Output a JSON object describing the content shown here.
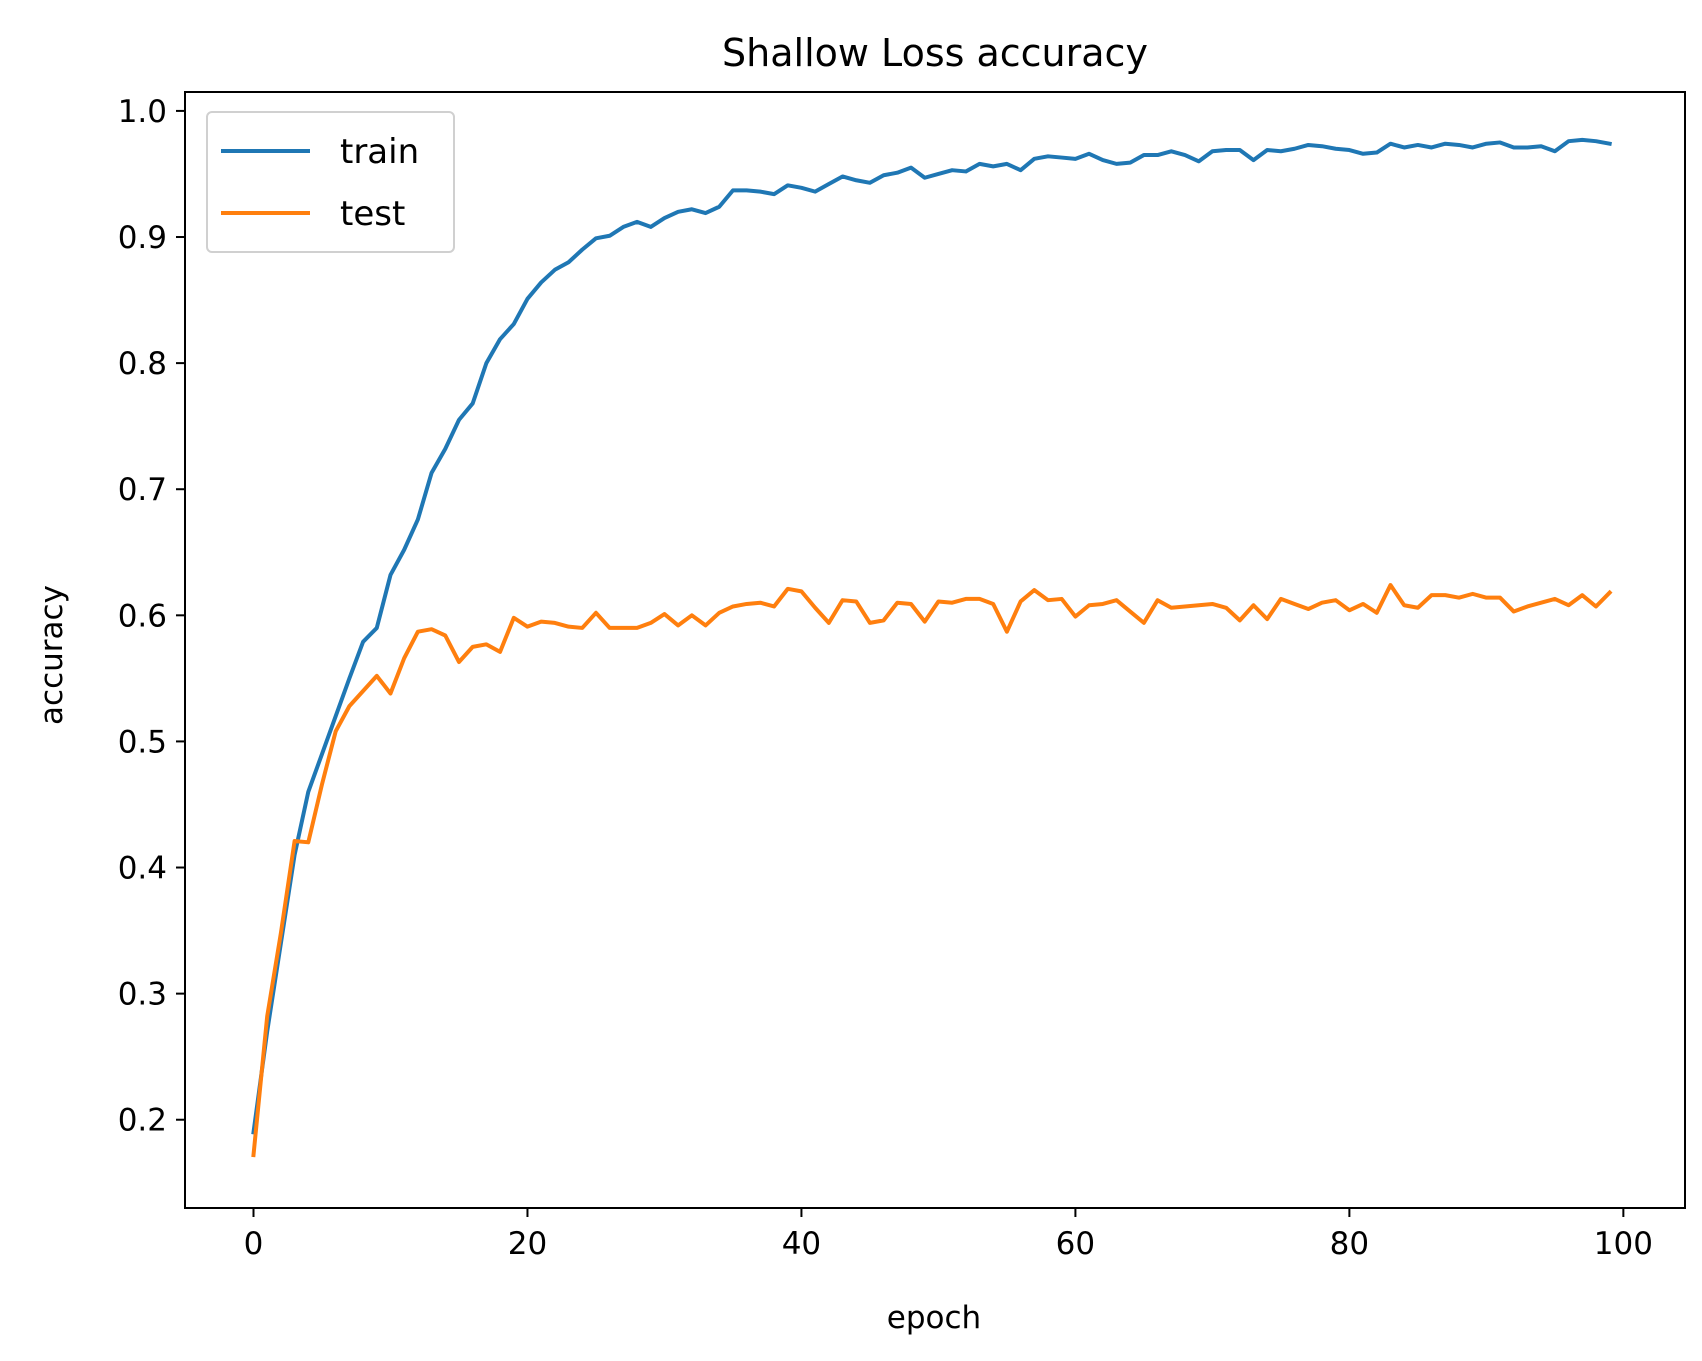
{
  "chart_data": {
    "type": "line",
    "title": "Shallow Loss accuracy",
    "xlabel": "epoch",
    "ylabel": "accuracy",
    "xlim": [
      -5,
      104.5
    ],
    "ylim": [
      0.13,
      1.015
    ],
    "x_ticks": [
      0,
      20,
      40,
      60,
      80,
      100
    ],
    "y_ticks": [
      0.2,
      0.3,
      0.4,
      0.5,
      0.6,
      0.7,
      0.8,
      0.9,
      1.0
    ],
    "x_tick_labels": [
      "0",
      "20",
      "40",
      "60",
      "80",
      "100"
    ],
    "y_tick_labels": [
      "0.2",
      "0.3",
      "0.4",
      "0.5",
      "0.6",
      "0.7",
      "0.8",
      "0.9",
      "1.0"
    ],
    "grid": false,
    "legend_position": "upper-left",
    "series": [
      {
        "name": "train",
        "color": "#1f77b4",
        "values": [
          0.19,
          0.27,
          0.34,
          0.41,
          0.46,
          0.49,
          0.52,
          0.55,
          0.579,
          0.59,
          0.632,
          0.652,
          0.676,
          0.713,
          0.732,
          0.755,
          0.768,
          0.8,
          0.819,
          0.831,
          0.851,
          0.864,
          0.874,
          0.88,
          0.89,
          0.899,
          0.901,
          0.908,
          0.912,
          0.908,
          0.915,
          0.92,
          0.922,
          0.919,
          0.924,
          0.937,
          0.937,
          0.936,
          0.934,
          0.941,
          0.939,
          0.936,
          0.942,
          0.948,
          0.945,
          0.943,
          0.949,
          0.951,
          0.955,
          0.947,
          0.95,
          0.953,
          0.952,
          0.958,
          0.956,
          0.958,
          0.953,
          0.962,
          0.964,
          0.963,
          0.962,
          0.966,
          0.961,
          0.958,
          0.959,
          0.965,
          0.965,
          0.968,
          0.965,
          0.96,
          0.968,
          0.969,
          0.969,
          0.961,
          0.969,
          0.968,
          0.97,
          0.973,
          0.972,
          0.97,
          0.969,
          0.966,
          0.967,
          0.974,
          0.971,
          0.973,
          0.971,
          0.974,
          0.973,
          0.971,
          0.974,
          0.975,
          0.971,
          0.971,
          0.972,
          0.968,
          0.976,
          0.977,
          0.976,
          0.974
        ]
      },
      {
        "name": "test",
        "color": "#ff7f0e",
        "values": [
          0.172,
          0.282,
          0.348,
          0.421,
          0.42,
          0.466,
          0.508,
          0.528,
          0.54,
          0.552,
          0.538,
          0.566,
          0.587,
          0.589,
          0.584,
          0.563,
          0.575,
          0.577,
          0.571,
          0.598,
          0.591,
          0.595,
          0.594,
          0.591,
          0.59,
          0.602,
          0.59,
          0.59,
          0.59,
          0.594,
          0.601,
          0.592,
          0.6,
          0.592,
          0.602,
          0.607,
          0.609,
          0.61,
          0.607,
          0.621,
          0.619,
          0.606,
          0.594,
          0.612,
          0.611,
          0.594,
          0.596,
          0.61,
          0.609,
          0.595,
          0.611,
          0.61,
          0.613,
          0.613,
          0.609,
          0.587,
          0.611,
          0.62,
          0.612,
          0.613,
          0.599,
          0.608,
          0.609,
          0.612,
          0.603,
          0.594,
          0.612,
          0.606,
          0.607,
          0.608,
          0.609,
          0.606,
          0.596,
          0.608,
          0.597,
          0.613,
          0.609,
          0.605,
          0.61,
          0.612,
          0.604,
          0.609,
          0.602,
          0.624,
          0.608,
          0.606,
          0.616,
          0.616,
          0.614,
          0.617,
          0.614,
          0.614,
          0.603,
          0.607,
          0.61,
          0.613,
          0.608,
          0.616,
          0.607,
          0.618
        ]
      }
    ]
  }
}
